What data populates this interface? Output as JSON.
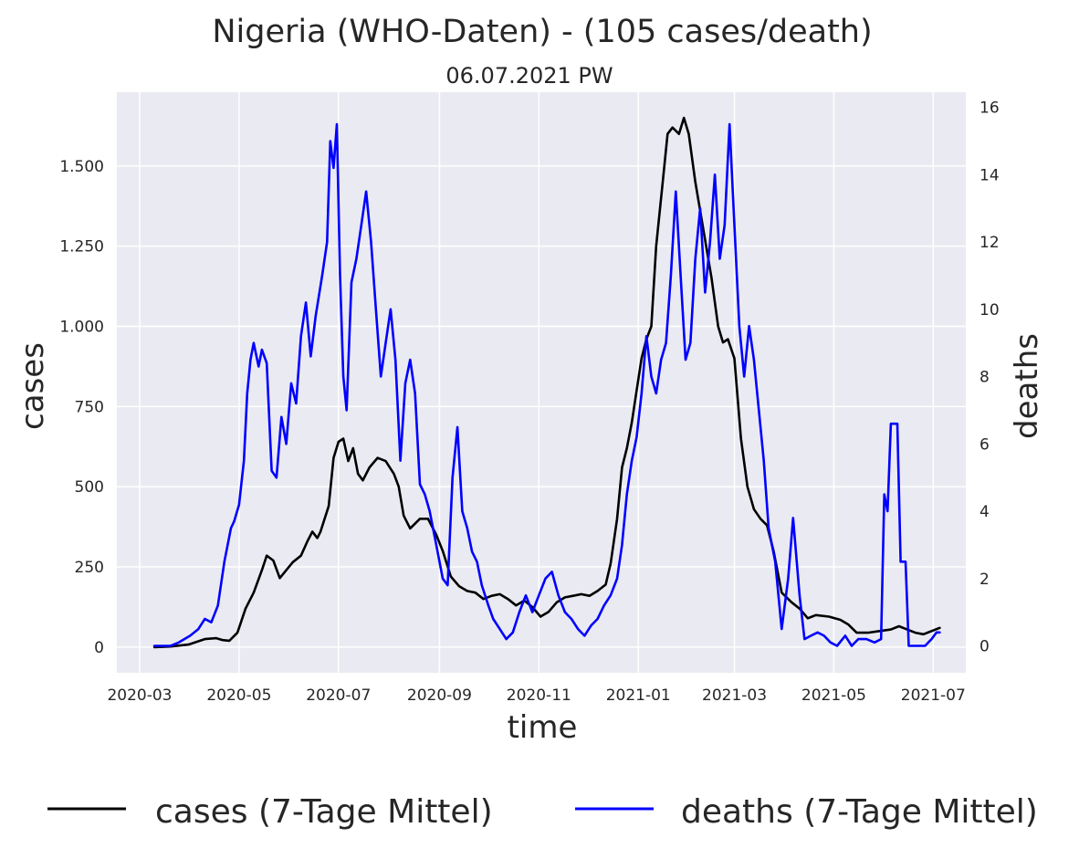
{
  "chart_data": {
    "type": "line",
    "title": "Nigeria (WHO-Daten) - (105 cases/death)",
    "subtitle": "06.07.2021 PW",
    "xlabel": "time",
    "ylabel": "cases",
    "y2label": "deaths",
    "x_ticks": [
      "2020-03",
      "2020-05",
      "2020-07",
      "2020-09",
      "2020-11",
      "2021-01",
      "2021-03",
      "2021-05",
      "2021-07"
    ],
    "y_ticks": [
      {
        "value": 0,
        "label": "0"
      },
      {
        "value": 250,
        "label": "250"
      },
      {
        "value": 500,
        "label": "500"
      },
      {
        "value": 750,
        "label": "750"
      },
      {
        "value": 1000,
        "label": "1.000"
      },
      {
        "value": 1250,
        "label": "1.250"
      },
      {
        "value": 1500,
        "label": "1.500"
      }
    ],
    "y2_ticks": [
      {
        "value": 0,
        "label": "0"
      },
      {
        "value": 2,
        "label": "2"
      },
      {
        "value": 4,
        "label": "4"
      },
      {
        "value": 6,
        "label": "6"
      },
      {
        "value": 8,
        "label": "8"
      },
      {
        "value": 10,
        "label": "10"
      },
      {
        "value": 12,
        "label": "12"
      },
      {
        "value": 14,
        "label": "14"
      },
      {
        "value": 16,
        "label": "16"
      }
    ],
    "xlim": [
      "2020-02-16",
      "2021-07-21"
    ],
    "ylim": [
      -80,
      1730
    ],
    "y2lim": [
      -0.8,
      16.45
    ],
    "grid": true,
    "legend_position": "bottom",
    "colors": {
      "background": "#eaeaf2",
      "grid": "#ffffff",
      "cases": "#000000",
      "deaths": "#0000ff"
    },
    "series": [
      {
        "name": "cases (7-Tage Mittel)",
        "axis": "left",
        "points": [
          [
            "2020-03-10",
            0
          ],
          [
            "2020-03-20",
            2
          ],
          [
            "2020-03-31",
            8
          ],
          [
            "2020-04-10",
            25
          ],
          [
            "2020-04-17",
            28
          ],
          [
            "2020-04-21",
            22
          ],
          [
            "2020-04-25",
            20
          ],
          [
            "2020-04-30",
            45
          ],
          [
            "2020-05-05",
            120
          ],
          [
            "2020-05-10",
            170
          ],
          [
            "2020-05-15",
            240
          ],
          [
            "2020-05-18",
            285
          ],
          [
            "2020-05-22",
            270
          ],
          [
            "2020-05-26",
            215
          ],
          [
            "2020-05-30",
            240
          ],
          [
            "2020-06-03",
            265
          ],
          [
            "2020-06-08",
            285
          ],
          [
            "2020-06-12",
            330
          ],
          [
            "2020-06-15",
            360
          ],
          [
            "2020-06-18",
            340
          ],
          [
            "2020-06-20",
            360
          ],
          [
            "2020-06-25",
            440
          ],
          [
            "2020-06-28",
            590
          ],
          [
            "2020-07-01",
            640
          ],
          [
            "2020-07-04",
            650
          ],
          [
            "2020-07-07",
            580
          ],
          [
            "2020-07-10",
            620
          ],
          [
            "2020-07-13",
            540
          ],
          [
            "2020-07-16",
            520
          ],
          [
            "2020-07-20",
            560
          ],
          [
            "2020-07-25",
            590
          ],
          [
            "2020-07-30",
            580
          ],
          [
            "2020-08-04",
            540
          ],
          [
            "2020-08-07",
            500
          ],
          [
            "2020-08-10",
            410
          ],
          [
            "2020-08-14",
            370
          ],
          [
            "2020-08-20",
            400
          ],
          [
            "2020-08-25",
            400
          ],
          [
            "2020-08-30",
            350
          ],
          [
            "2020-09-03",
            300
          ],
          [
            "2020-09-08",
            220
          ],
          [
            "2020-09-13",
            190
          ],
          [
            "2020-09-18",
            175
          ],
          [
            "2020-09-23",
            170
          ],
          [
            "2020-09-28",
            150
          ],
          [
            "2020-10-03",
            160
          ],
          [
            "2020-10-08",
            165
          ],
          [
            "2020-10-13",
            150
          ],
          [
            "2020-10-18",
            130
          ],
          [
            "2020-10-23",
            145
          ],
          [
            "2020-10-28",
            125
          ],
          [
            "2020-11-02",
            95
          ],
          [
            "2020-11-07",
            110
          ],
          [
            "2020-11-12",
            140
          ],
          [
            "2020-11-17",
            155
          ],
          [
            "2020-11-22",
            160
          ],
          [
            "2020-11-27",
            165
          ],
          [
            "2020-12-02",
            160
          ],
          [
            "2020-12-07",
            175
          ],
          [
            "2020-12-12",
            195
          ],
          [
            "2020-12-15",
            260
          ],
          [
            "2020-12-19",
            400
          ],
          [
            "2020-12-22",
            560
          ],
          [
            "2020-12-25",
            620
          ],
          [
            "2020-12-28",
            700
          ],
          [
            "2020-12-31",
            800
          ],
          [
            "2021-01-03",
            900
          ],
          [
            "2021-01-06",
            960
          ],
          [
            "2021-01-09",
            1000
          ],
          [
            "2021-01-12",
            1250
          ],
          [
            "2021-01-16",
            1450
          ],
          [
            "2021-01-19",
            1600
          ],
          [
            "2021-01-22",
            1620
          ],
          [
            "2021-01-26",
            1600
          ],
          [
            "2021-01-29",
            1650
          ],
          [
            "2021-02-01",
            1600
          ],
          [
            "2021-02-05",
            1450
          ],
          [
            "2021-02-10",
            1300
          ],
          [
            "2021-02-15",
            1150
          ],
          [
            "2021-02-19",
            1000
          ],
          [
            "2021-02-22",
            950
          ],
          [
            "2021-02-25",
            960
          ],
          [
            "2021-03-01",
            900
          ],
          [
            "2021-03-05",
            650
          ],
          [
            "2021-03-09",
            500
          ],
          [
            "2021-03-13",
            430
          ],
          [
            "2021-03-17",
            400
          ],
          [
            "2021-03-21",
            380
          ],
          [
            "2021-03-25",
            300
          ],
          [
            "2021-03-30",
            170
          ],
          [
            "2021-04-05",
            140
          ],
          [
            "2021-04-10",
            120
          ],
          [
            "2021-04-15",
            90
          ],
          [
            "2021-04-20",
            100
          ],
          [
            "2021-04-28",
            95
          ],
          [
            "2021-05-05",
            85
          ],
          [
            "2021-05-10",
            70
          ],
          [
            "2021-05-15",
            45
          ],
          [
            "2021-05-22",
            45
          ],
          [
            "2021-05-29",
            50
          ],
          [
            "2021-06-05",
            55
          ],
          [
            "2021-06-10",
            65
          ],
          [
            "2021-06-15",
            55
          ],
          [
            "2021-06-20",
            45
          ],
          [
            "2021-06-25",
            40
          ],
          [
            "2021-06-30",
            50
          ],
          [
            "2021-07-05",
            60
          ]
        ]
      },
      {
        "name": "deaths (7-Tage Mittel)",
        "axis": "right",
        "points": [
          [
            "2020-03-10",
            0
          ],
          [
            "2020-03-20",
            0
          ],
          [
            "2020-03-25",
            0.1
          ],
          [
            "2020-04-01",
            0.3
          ],
          [
            "2020-04-06",
            0.5
          ],
          [
            "2020-04-10",
            0.8
          ],
          [
            "2020-04-14",
            0.7
          ],
          [
            "2020-04-18",
            1.2
          ],
          [
            "2020-04-22",
            2.5
          ],
          [
            "2020-04-26",
            3.5
          ],
          [
            "2020-04-28",
            3.7
          ],
          [
            "2020-05-01",
            4.2
          ],
          [
            "2020-05-04",
            5.5
          ],
          [
            "2020-05-06",
            7.5
          ],
          [
            "2020-05-08",
            8.5
          ],
          [
            "2020-05-10",
            9.0
          ],
          [
            "2020-05-13",
            8.3
          ],
          [
            "2020-05-15",
            8.8
          ],
          [
            "2020-05-18",
            8.4
          ],
          [
            "2020-05-21",
            5.2
          ],
          [
            "2020-05-24",
            5.0
          ],
          [
            "2020-05-27",
            6.8
          ],
          [
            "2020-05-30",
            6.0
          ],
          [
            "2020-06-02",
            7.8
          ],
          [
            "2020-06-05",
            7.2
          ],
          [
            "2020-06-08",
            9.2
          ],
          [
            "2020-06-11",
            10.2
          ],
          [
            "2020-06-14",
            8.6
          ],
          [
            "2020-06-17",
            9.8
          ],
          [
            "2020-06-21",
            11.0
          ],
          [
            "2020-06-24",
            12.0
          ],
          [
            "2020-06-26",
            15.0
          ],
          [
            "2020-06-28",
            14.2
          ],
          [
            "2020-06-30",
            15.5
          ],
          [
            "2020-07-02",
            11.0
          ],
          [
            "2020-07-04",
            8.0
          ],
          [
            "2020-07-06",
            7.0
          ],
          [
            "2020-07-09",
            10.8
          ],
          [
            "2020-07-12",
            11.5
          ],
          [
            "2020-07-15",
            12.5
          ],
          [
            "2020-07-18",
            13.5
          ],
          [
            "2020-07-21",
            12.0
          ],
          [
            "2020-07-24",
            10.0
          ],
          [
            "2020-07-27",
            8.0
          ],
          [
            "2020-07-30",
            9.0
          ],
          [
            "2020-08-02",
            10.0
          ],
          [
            "2020-08-05",
            8.5
          ],
          [
            "2020-08-08",
            5.5
          ],
          [
            "2020-08-11",
            7.8
          ],
          [
            "2020-08-14",
            8.5
          ],
          [
            "2020-08-17",
            7.5
          ],
          [
            "2020-08-20",
            4.8
          ],
          [
            "2020-08-23",
            4.5
          ],
          [
            "2020-08-26",
            4.0
          ],
          [
            "2020-08-30",
            3.0
          ],
          [
            "2020-09-03",
            2.0
          ],
          [
            "2020-09-06",
            1.8
          ],
          [
            "2020-09-09",
            5.0
          ],
          [
            "2020-09-12",
            6.5
          ],
          [
            "2020-09-15",
            4.0
          ],
          [
            "2020-09-18",
            3.5
          ],
          [
            "2020-09-21",
            2.8
          ],
          [
            "2020-09-24",
            2.5
          ],
          [
            "2020-09-27",
            1.8
          ],
          [
            "2020-10-01",
            1.2
          ],
          [
            "2020-10-04",
            0.8
          ],
          [
            "2020-10-08",
            0.5
          ],
          [
            "2020-10-12",
            0.2
          ],
          [
            "2020-10-16",
            0.4
          ],
          [
            "2020-10-20",
            1.0
          ],
          [
            "2020-10-24",
            1.5
          ],
          [
            "2020-10-28",
            1.0
          ],
          [
            "2020-11-01",
            1.5
          ],
          [
            "2020-11-05",
            2.0
          ],
          [
            "2020-11-09",
            2.2
          ],
          [
            "2020-11-13",
            1.5
          ],
          [
            "2020-11-17",
            1.0
          ],
          [
            "2020-11-21",
            0.8
          ],
          [
            "2020-11-25",
            0.5
          ],
          [
            "2020-11-29",
            0.3
          ],
          [
            "2020-12-03",
            0.6
          ],
          [
            "2020-12-07",
            0.8
          ],
          [
            "2020-12-11",
            1.2
          ],
          [
            "2020-12-15",
            1.5
          ],
          [
            "2020-12-19",
            2.0
          ],
          [
            "2020-12-22",
            3.0
          ],
          [
            "2020-12-25",
            4.5
          ],
          [
            "2020-12-28",
            5.5
          ],
          [
            "2020-12-31",
            6.2
          ],
          [
            "2021-01-03",
            7.5
          ],
          [
            "2021-01-06",
            9.2
          ],
          [
            "2021-01-09",
            8.0
          ],
          [
            "2021-01-12",
            7.5
          ],
          [
            "2021-01-15",
            8.5
          ],
          [
            "2021-01-18",
            9.0
          ],
          [
            "2021-01-21",
            11.0
          ],
          [
            "2021-01-24",
            13.5
          ],
          [
            "2021-01-27",
            11.0
          ],
          [
            "2021-01-30",
            8.5
          ],
          [
            "2021-02-02",
            9.0
          ],
          [
            "2021-02-05",
            11.5
          ],
          [
            "2021-02-08",
            13.0
          ],
          [
            "2021-02-11",
            10.5
          ],
          [
            "2021-02-14",
            12.0
          ],
          [
            "2021-02-17",
            14.0
          ],
          [
            "2021-02-20",
            11.5
          ],
          [
            "2021-02-23",
            12.5
          ],
          [
            "2021-02-26",
            15.5
          ],
          [
            "2021-03-01",
            12.5
          ],
          [
            "2021-03-04",
            9.5
          ],
          [
            "2021-03-07",
            8.0
          ],
          [
            "2021-03-10",
            9.5
          ],
          [
            "2021-03-13",
            8.5
          ],
          [
            "2021-03-16",
            7.0
          ],
          [
            "2021-03-19",
            5.5
          ],
          [
            "2021-03-22",
            3.5
          ],
          [
            "2021-03-26",
            2.5
          ],
          [
            "2021-03-30",
            0.5
          ],
          [
            "2021-04-03",
            2.0
          ],
          [
            "2021-04-06",
            3.8
          ],
          [
            "2021-04-10",
            1.5
          ],
          [
            "2021-04-13",
            0.2
          ],
          [
            "2021-04-17",
            0.3
          ],
          [
            "2021-04-21",
            0.4
          ],
          [
            "2021-04-25",
            0.3
          ],
          [
            "2021-04-29",
            0.1
          ],
          [
            "2021-05-03",
            0.0
          ],
          [
            "2021-05-08",
            0.3
          ],
          [
            "2021-05-12",
            0.0
          ],
          [
            "2021-05-16",
            0.2
          ],
          [
            "2021-05-21",
            0.2
          ],
          [
            "2021-05-26",
            0.1
          ],
          [
            "2021-05-30",
            0.2
          ],
          [
            "2021-06-01",
            4.5
          ],
          [
            "2021-06-03",
            4.0
          ],
          [
            "2021-06-05",
            6.6
          ],
          [
            "2021-06-09",
            6.6
          ],
          [
            "2021-06-11",
            2.5
          ],
          [
            "2021-06-14",
            2.5
          ],
          [
            "2021-06-16",
            0.0
          ],
          [
            "2021-06-22",
            0.0
          ],
          [
            "2021-06-26",
            0.0
          ],
          [
            "2021-06-30",
            0.2
          ],
          [
            "2021-07-03",
            0.4
          ],
          [
            "2021-07-05",
            0.4
          ]
        ]
      }
    ]
  }
}
